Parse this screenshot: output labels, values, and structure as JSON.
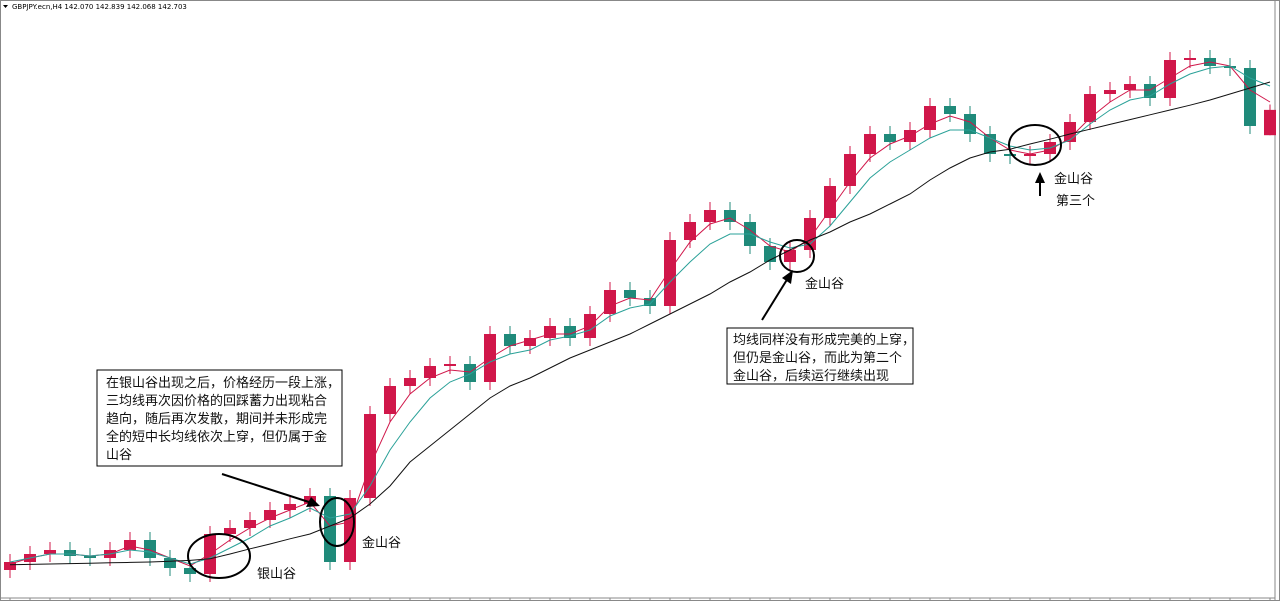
{
  "chart_data": {
    "type": "candlestick",
    "title": "GBPJPY.ecn,H4  142.070 142.839 142.068 142.703",
    "up_color": "#d0174a",
    "down_color": "#1f8a7a",
    "ylim": [
      130.5,
      145
    ],
    "open": [
      131.2,
      131.4,
      131.6,
      131.7,
      131.55,
      131.5,
      131.7,
      131.95,
      131.5,
      131.25,
      131.1,
      132.1,
      132.25,
      132.45,
      132.7,
      132.85,
      133.05,
      131.4,
      133.0,
      135.1,
      135.8,
      136.0,
      136.3,
      136.35,
      135.9,
      137.1,
      136.8,
      137.0,
      137.3,
      137.0,
      137.6,
      138.2,
      138.0,
      137.8,
      139.45,
      139.9,
      140.2,
      139.9,
      139.3,
      138.9,
      139.2,
      140.0,
      140.8,
      141.6,
      142.1,
      141.9,
      142.2,
      142.8,
      142.6,
      142.1,
      141.6,
      141.55,
      141.6,
      141.9,
      142.4,
      143.1,
      143.2,
      143.35,
      143.0,
      143.95,
      144.0,
      143.8,
      143.75,
      142.07
    ],
    "high": [
      131.6,
      131.8,
      131.9,
      131.9,
      131.75,
      131.9,
      132.15,
      132.15,
      131.7,
      131.45,
      132.3,
      132.45,
      132.65,
      132.9,
      133.05,
      133.25,
      133.25,
      133.2,
      135.3,
      136.0,
      136.2,
      136.5,
      136.55,
      136.55,
      137.3,
      137.3,
      137.2,
      137.5,
      137.5,
      137.8,
      138.4,
      138.4,
      138.2,
      139.65,
      140.1,
      140.4,
      140.4,
      140.1,
      139.5,
      139.4,
      140.2,
      141.0,
      141.8,
      142.3,
      142.3,
      142.4,
      143.0,
      143.0,
      142.8,
      142.3,
      141.8,
      141.8,
      142.1,
      142.6,
      143.3,
      143.4,
      143.55,
      143.55,
      144.15,
      144.2,
      144.2,
      144.0,
      143.95,
      142.839
    ],
    "low": [
      131.0,
      131.2,
      131.4,
      131.35,
      131.3,
      131.3,
      131.5,
      131.3,
      131.05,
      130.9,
      130.9,
      131.9,
      132.05,
      132.25,
      132.5,
      132.65,
      131.2,
      131.2,
      132.8,
      134.9,
      135.6,
      135.8,
      136.1,
      135.7,
      135.7,
      136.6,
      136.6,
      136.8,
      136.8,
      136.8,
      137.4,
      137.8,
      137.6,
      137.6,
      139.25,
      139.7,
      139.7,
      139.1,
      138.7,
      138.7,
      139.0,
      139.8,
      140.6,
      141.4,
      141.7,
      141.7,
      142.0,
      142.4,
      141.9,
      141.4,
      141.35,
      141.35,
      141.4,
      141.7,
      142.2,
      142.9,
      143.0,
      142.8,
      142.8,
      143.75,
      143.6,
      143.55,
      142.1,
      142.068
    ],
    "close": [
      131.4,
      131.6,
      131.7,
      131.55,
      131.5,
      131.7,
      131.95,
      131.5,
      131.25,
      131.1,
      132.1,
      132.25,
      132.45,
      132.7,
      132.85,
      133.05,
      131.4,
      133.0,
      135.1,
      135.8,
      136.0,
      136.3,
      136.35,
      135.9,
      137.1,
      136.8,
      137.0,
      137.3,
      137.0,
      137.6,
      138.2,
      138.0,
      137.8,
      139.45,
      139.9,
      140.2,
      139.9,
      139.3,
      138.9,
      139.2,
      140.0,
      140.8,
      141.6,
      142.1,
      141.9,
      142.2,
      142.8,
      142.6,
      142.1,
      141.6,
      141.55,
      141.6,
      141.9,
      142.4,
      143.1,
      143.2,
      143.35,
      143.0,
      143.95,
      144.0,
      143.8,
      143.75,
      142.3,
      142.703
    ],
    "series": [
      {
        "color": "#d0174a",
        "values": [
          131.35,
          131.5,
          131.6,
          131.6,
          131.55,
          131.6,
          131.8,
          131.7,
          131.5,
          131.3,
          131.6,
          131.95,
          132.25,
          132.5,
          132.7,
          132.9,
          132.3,
          132.4,
          133.8,
          134.9,
          135.6,
          136.0,
          136.2,
          136.15,
          136.5,
          136.8,
          136.95,
          137.1,
          137.1,
          137.3,
          137.8,
          138.0,
          137.95,
          138.7,
          139.4,
          139.85,
          140.0,
          139.7,
          139.3,
          139.15,
          139.5,
          140.2,
          140.9,
          141.5,
          141.85,
          142.05,
          142.35,
          142.55,
          142.4,
          142.0,
          141.7,
          141.6,
          141.7,
          142.0,
          142.5,
          142.9,
          143.2,
          143.2,
          143.5,
          143.8,
          143.9,
          143.8,
          143.2,
          142.9
        ]
      },
      {
        "color": "#2aa198",
        "values": [
          131.4,
          131.5,
          131.6,
          131.6,
          131.55,
          131.6,
          131.7,
          131.65,
          131.5,
          131.35,
          131.5,
          131.75,
          132.0,
          132.3,
          132.5,
          132.75,
          132.5,
          132.6,
          133.3,
          134.2,
          134.9,
          135.5,
          135.9,
          136.1,
          136.4,
          136.6,
          136.7,
          136.95,
          137.05,
          137.2,
          137.55,
          137.75,
          137.85,
          138.4,
          138.9,
          139.35,
          139.6,
          139.6,
          139.4,
          139.25,
          139.35,
          139.8,
          140.4,
          141.0,
          141.4,
          141.7,
          142.0,
          142.2,
          142.2,
          142.0,
          141.8,
          141.7,
          141.75,
          141.95,
          142.35,
          142.7,
          142.95,
          143.05,
          143.35,
          143.6,
          143.75,
          143.8,
          143.5,
          143.3
        ]
      },
      {
        "color": "#111111",
        "values": [
          131.33,
          131.34,
          131.35,
          131.36,
          131.37,
          131.38,
          131.39,
          131.4,
          131.42,
          131.44,
          131.48,
          131.6,
          131.73,
          131.85,
          131.98,
          132.1,
          132.3,
          132.5,
          132.85,
          133.3,
          133.9,
          134.3,
          134.7,
          135.1,
          135.5,
          135.8,
          136.0,
          136.25,
          136.5,
          136.7,
          136.9,
          137.1,
          137.35,
          137.6,
          137.85,
          138.1,
          138.4,
          138.65,
          138.95,
          139.2,
          139.45,
          139.65,
          139.9,
          140.1,
          140.35,
          140.6,
          140.95,
          141.25,
          141.5,
          141.65,
          141.72,
          141.85,
          141.97,
          142.1,
          142.22,
          142.34,
          142.46,
          142.58,
          142.7,
          142.82,
          142.95,
          143.1,
          143.25,
          143.4
        ]
      }
    ],
    "annotations": [
      {
        "text": "银山谷"
      },
      {
        "text": "金山谷"
      },
      {
        "text": "金山谷"
      },
      {
        "lines": [
          "金山谷",
          "第三个"
        ]
      },
      {
        "lines": [
          "在银山谷出现之后，价格经历一段上涨，",
          "三均线再次因价格的回踩蓄力出现粘合",
          "趋向，随后再次发散，期间并未形成完",
          "全的短中长均线依次上穿，但仍属于金",
          "山谷"
        ]
      },
      {
        "lines": [
          "均线同样没有形成完美的上穿，",
          "但仍是金山谷，而此为第二个",
          "金山谷，后续运行继续出现"
        ]
      }
    ]
  }
}
